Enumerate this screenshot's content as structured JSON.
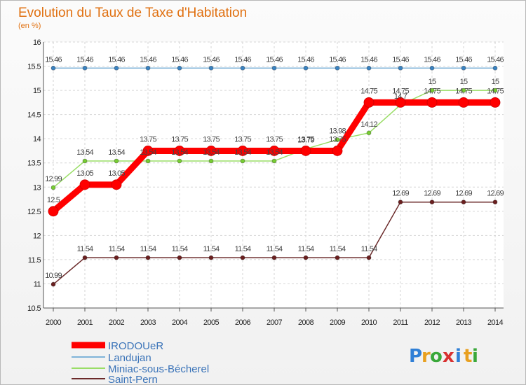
{
  "chart_data": {
    "type": "line",
    "title": "Evolution du Taux de Taxe d'Habitation",
    "subtitle": "(en %)",
    "xlabel": "",
    "ylabel": "(en %)",
    "x": [
      "2000",
      "2001",
      "2002",
      "2003",
      "2004",
      "2005",
      "2006",
      "2007",
      "2008",
      "2009",
      "2010",
      "2011",
      "2012",
      "2013",
      "2014"
    ],
    "ylim": [
      10.5,
      16
    ],
    "yticks": [
      "10.5",
      "11",
      "11.5",
      "12",
      "12.5",
      "13",
      "13.5",
      "14",
      "14.5",
      "15",
      "15.5",
      "16"
    ],
    "grid": true,
    "legend": "bottom-left",
    "series": [
      {
        "name": "IRODOUeR",
        "color": "#ff0000",
        "values": [
          12.5,
          13.05,
          13.05,
          13.75,
          13.75,
          13.75,
          13.75,
          13.75,
          13.75,
          13.75,
          14.75,
          14.75,
          14.75,
          14.75,
          14.75
        ],
        "labels": [
          "12.5",
          "13.05",
          "13.05",
          "13.75",
          "13.75",
          "13.75",
          "13.75",
          "13.75",
          "13.75",
          "13.75",
          "14.75",
          "14.75",
          "14.75",
          "14.75",
          "14.75"
        ]
      },
      {
        "name": "Landujan",
        "color": "#7fb3d8",
        "values": [
          15.46,
          15.46,
          15.46,
          15.46,
          15.46,
          15.46,
          15.46,
          15.46,
          15.46,
          15.46,
          15.46,
          15.46,
          15.46,
          15.46,
          15.46
        ],
        "labels": [
          "15.46",
          "15.46",
          "15.46",
          "15.46",
          "15.46",
          "15.46",
          "15.46",
          "15.46",
          "15.46",
          "15.46",
          "15.46",
          "15.46",
          "15.46",
          "15.46",
          "15.46"
        ]
      },
      {
        "name": "Miniac-sous-Bécherel",
        "color": "#99dd66",
        "values": [
          12.99,
          13.54,
          13.54,
          13.54,
          13.54,
          13.54,
          13.54,
          13.54,
          13.79,
          13.98,
          14.12,
          14.7,
          15,
          15,
          15
        ],
        "labels": [
          "12.99",
          "13.54",
          "13.54",
          "13.54",
          "13.54",
          "13.54",
          "13.54",
          "13.54",
          "13.79",
          "13.98",
          "14.12",
          "14.7",
          "15",
          "15",
          "15"
        ]
      },
      {
        "name": "Saint-Pern",
        "color": "#6b2a2a",
        "values": [
          10.99,
          11.54,
          11.54,
          11.54,
          11.54,
          11.54,
          11.54,
          11.54,
          11.54,
          11.54,
          11.54,
          12.69,
          12.69,
          12.69,
          12.69
        ],
        "labels": [
          "10.99",
          "11.54",
          "11.54",
          "11.54",
          "11.54",
          "11.54",
          "11.54",
          "11.54",
          "11.54",
          "11.54",
          "11.54",
          "12.69",
          "12.69",
          "12.69",
          "12.69"
        ]
      }
    ]
  },
  "brand": {
    "letters": [
      "P",
      "r",
      "o",
      "x",
      "i",
      "t",
      "i"
    ],
    "colors": [
      "#2f7fd6",
      "#e8a020",
      "#3aa83a",
      "#d83030",
      "#2f7fd6",
      "#e8a020",
      "#3aa83a"
    ]
  }
}
